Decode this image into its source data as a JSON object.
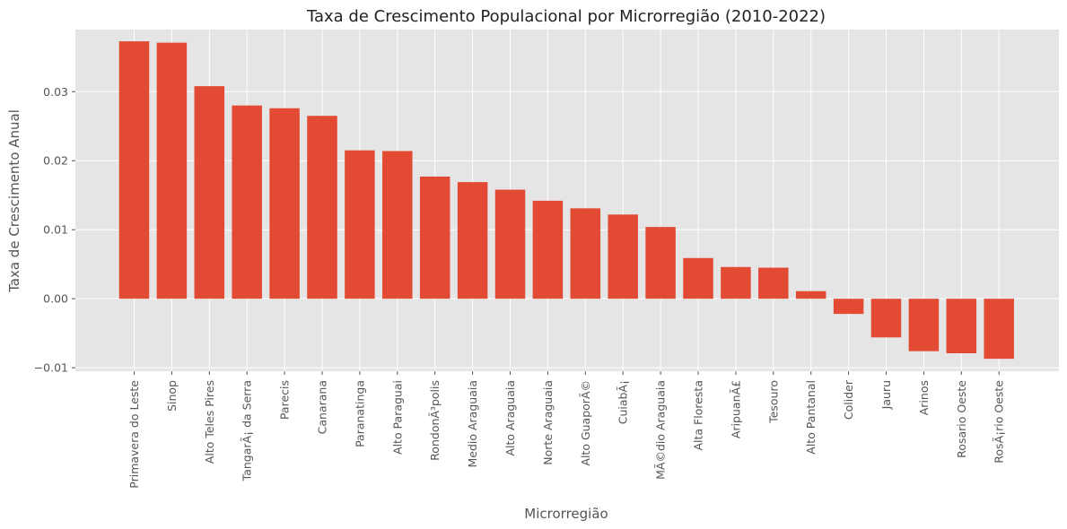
{
  "chart_data": {
    "type": "bar",
    "title": "Taxa de Crescimento Populacional por Microrregião (2010-2022)",
    "xlabel": "Microrregião",
    "ylabel": "Taxa de Crescimento Anual",
    "categories": [
      "Primavera do Leste",
      "Sinop",
      "Alto Teles Pires",
      "TangarÃ¡ da Serra",
      "Parecis",
      "Canarana",
      "Paranatinga",
      "Alto Paraguai",
      "RondonÃ³polis",
      "Medio Araguaia",
      "Alto Araguaia",
      "Norte Araguaia",
      "Alto GuaporÃ©",
      "CuiabÃ¡",
      "MÃ©dio Araguaia",
      "Alta Floresta",
      "AripuanÃ£",
      "Tesouro",
      "Alto Pantanal",
      "Colider",
      "Jauru",
      "Arinos",
      "Rosario Oeste",
      "RosÃ¡rio Oeste"
    ],
    "values": [
      0.0373,
      0.0371,
      0.0308,
      0.028,
      0.0276,
      0.0265,
      0.0215,
      0.0214,
      0.0177,
      0.0169,
      0.0158,
      0.0142,
      0.0131,
      0.0122,
      0.0104,
      0.0059,
      0.0046,
      0.0045,
      0.0011,
      -0.0022,
      -0.0056,
      -0.0076,
      -0.0079,
      -0.0087
    ],
    "ylim": [
      -0.0105,
      0.039
    ],
    "yticks": [
      -0.01,
      0.0,
      0.01,
      0.02,
      0.03
    ],
    "ytick_labels": [
      "−0.01",
      "0.00",
      "0.01",
      "0.02",
      "0.03"
    ],
    "grid": true,
    "colors": {
      "bar": "#E24A33",
      "plot_background": "#E5E5E5",
      "grid": "#FFFFFF",
      "text": "#555555"
    }
  }
}
